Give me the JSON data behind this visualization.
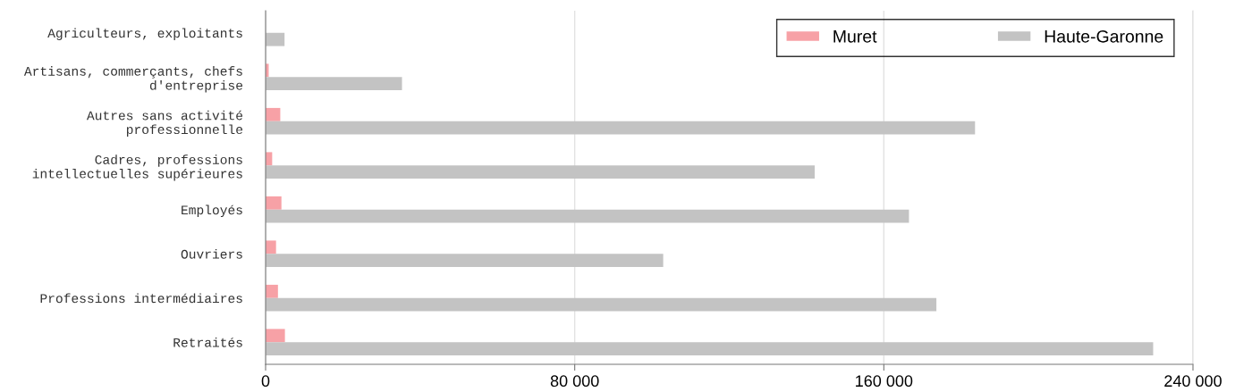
{
  "chart_data": {
    "type": "bar",
    "orientation": "horizontal",
    "categories": [
      "Agriculteurs, exploitants",
      "Artisans, commerçants, chefs\nd'entreprise",
      "Autres sans activité\nprofessionnelle",
      "Cadres, professions\nintellectuelles supérieures",
      "Employés",
      "Ouvriers",
      "Professions intermédiaires",
      "Retraités"
    ],
    "series": [
      {
        "name": "Muret",
        "color": "#f7a1a6",
        "values": [
          null,
          800,
          3800,
          1700,
          4100,
          2700,
          3200,
          5000
        ]
      },
      {
        "name": "Haute-Garonne",
        "color": "#c3c3c3",
        "values": [
          4900,
          35300,
          183600,
          142100,
          166500,
          102900,
          173600,
          229700
        ]
      }
    ],
    "xlim": [
      0,
      240000
    ],
    "xticks": [
      {
        "value": 0,
        "label": "0"
      },
      {
        "value": 80000,
        "label": "80 000"
      },
      {
        "value": 160000,
        "label": "160 000"
      },
      {
        "value": 240000,
        "label": "240 000"
      }
    ],
    "grid": "x",
    "legend": "top right"
  }
}
